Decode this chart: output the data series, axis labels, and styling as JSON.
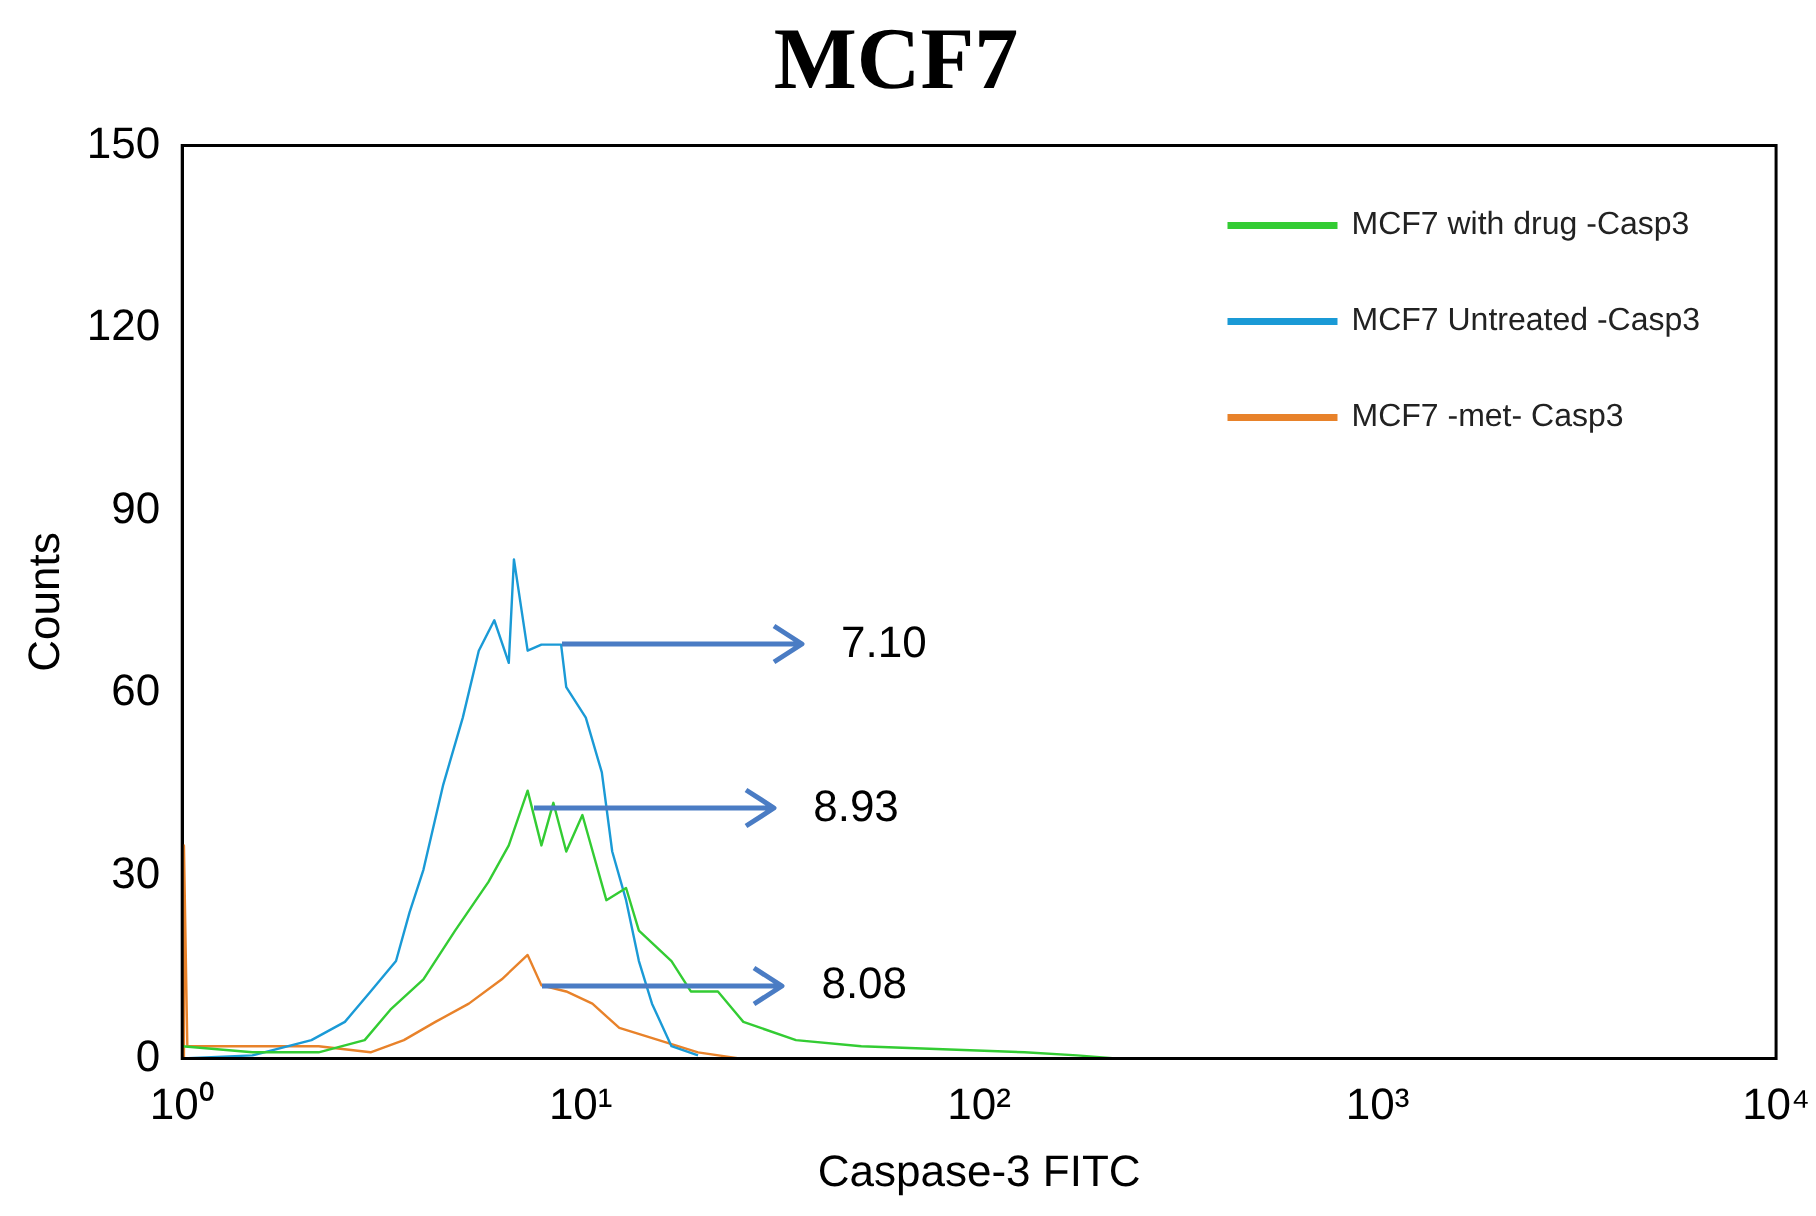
{
  "chart_data": {
    "type": "line",
    "title": "MCF7",
    "xlabel": "Caspase-3 FITC",
    "ylabel": "Counts",
    "log": "x",
    "xlim": [
      1,
      10000
    ],
    "xticks": [
      {
        "value": 1,
        "label": "10⁰"
      },
      {
        "value": 10,
        "label": "10¹"
      },
      {
        "value": 100,
        "label": "10²"
      },
      {
        "value": 1000,
        "label": "10³"
      },
      {
        "value": 10000,
        "label": "10⁴"
      }
    ],
    "ylim": [
      0,
      150
    ],
    "yticks": [
      0,
      30,
      60,
      90,
      120,
      150
    ],
    "grid": false,
    "legend": "top right",
    "marker": "none",
    "line_style": "solid",
    "series": [
      {
        "name": "MCF7 with drug -Casp3",
        "color": "#33cc33",
        "x": [
          1,
          1.5,
          2.2,
          2.87,
          3.33,
          4.03,
          4.84,
          5.87,
          6.6,
          7.36,
          7.97,
          8.54,
          9.2,
          10.1,
          11.6,
          13,
          14,
          16.9,
          18.9,
          22.1,
          25.6,
          34.7,
          50.6,
          130,
          176,
          220
        ],
        "values": [
          2,
          1,
          1,
          3,
          8,
          13,
          21,
          29,
          35,
          44,
          35,
          42,
          34,
          40,
          26,
          28,
          21,
          16,
          11,
          11,
          6,
          3,
          2,
          1,
          0.5,
          0
        ]
      },
      {
        "name": "MCF7 Untreated -Casp3",
        "color": "#1a9ad6",
        "x": [
          1,
          1.5,
          2.11,
          2.56,
          2.97,
          3.44,
          3.72,
          4.03,
          4.52,
          5.06,
          5.55,
          6.07,
          6.6,
          6.8,
          7.36,
          7.97,
          8.93,
          9.2,
          10.3,
          11.3,
          12,
          13,
          14,
          15.1,
          16.9,
          19.7
        ],
        "values": [
          0,
          0.5,
          3,
          6,
          11,
          16,
          24,
          31,
          45,
          56,
          67,
          72,
          65,
          82,
          67,
          68,
          68,
          61,
          56,
          47,
          34,
          26,
          16,
          9,
          2,
          0.5
        ]
      },
      {
        "name": "MCF7 -met- Casp3",
        "color": "#e8822a",
        "x": [
          1,
          1.01,
          1.03,
          1.5,
          2.2,
          2.97,
          3.6,
          4.32,
          5.24,
          6.34,
          7.36,
          7.97,
          9.2,
          10.7,
          12.5,
          15.7,
          19.7,
          25
        ],
        "values": [
          0,
          35,
          2,
          2,
          2,
          1,
          3,
          6,
          9,
          13,
          17,
          12,
          11,
          9,
          5,
          3,
          1,
          0
        ]
      }
    ],
    "annotations": [
      {
        "text": "7.10",
        "x": 8.93,
        "y": 68
      },
      {
        "text": "8.93",
        "x": 7.6,
        "y": 41
      },
      {
        "text": "8.08",
        "x": 7.97,
        "y": 12
      }
    ]
  }
}
